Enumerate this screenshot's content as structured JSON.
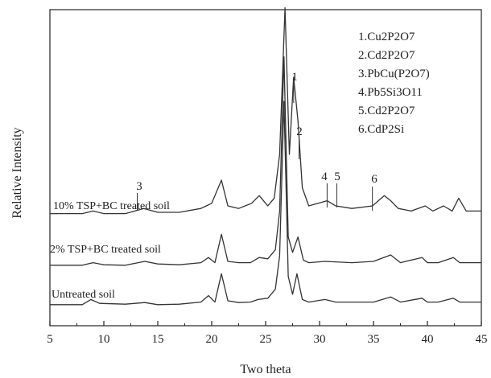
{
  "chart_data": {
    "type": "line",
    "xlabel": "Two theta",
    "ylabel": "Relative Intensity",
    "xlim": [
      5,
      45
    ],
    "xticks": [
      5,
      10,
      15,
      20,
      25,
      30,
      35,
      40,
      45
    ],
    "y_ticks_shown": false,
    "grid": false,
    "legend_position": "top-right",
    "phase_legend": [
      "1.Cu2P2O7",
      "2.Cd2P2O7",
      "3.PbCu(P2O7)",
      "4.Pb5Si3O11",
      "5.Cd2P2O7",
      "6.CdP2Si"
    ],
    "peak_markers": [
      {
        "label": "1",
        "x": 27.6
      },
      {
        "label": "2",
        "x": 28.1
      },
      {
        "label": "3",
        "x": 13.1
      },
      {
        "label": "4",
        "x": 30.7
      },
      {
        "label": "5",
        "x": 31.6
      },
      {
        "label": "6",
        "x": 34.9
      }
    ],
    "series": [
      {
        "name": "Untreated soil",
        "color": "#333333",
        "x": [
          5,
          8,
          8.8,
          9.6,
          12,
          13.8,
          15,
          17,
          19,
          19.7,
          20.3,
          20.9,
          21.5,
          22.5,
          23.6,
          24.3,
          25.2,
          25.9,
          26.3,
          26.7,
          27.1,
          27.5,
          27.9,
          28.4,
          29,
          30.5,
          31.5,
          33,
          35,
          36.6,
          37.5,
          39.5,
          40,
          41,
          42.4,
          43,
          45
        ],
        "y": [
          1,
          1,
          3,
          1.5,
          1.2,
          1.8,
          1,
          1.2,
          2,
          4.5,
          2,
          13,
          2.5,
          1.8,
          2,
          3,
          3.5,
          7,
          20,
          80,
          12,
          5,
          13,
          3,
          2,
          3,
          2,
          2,
          2,
          4,
          2,
          3.5,
          2,
          2,
          3.5,
          2,
          2
        ]
      },
      {
        "name": "2% TSP+BC treated soil",
        "color": "#333333",
        "x": [
          5,
          8,
          9,
          10,
          12,
          13.8,
          15,
          17,
          19,
          19.7,
          20.3,
          20.9,
          21.5,
          22.5,
          23.6,
          24.4,
          25.2,
          25.9,
          26.3,
          26.7,
          27.1,
          27.5,
          28,
          28.5,
          29,
          30.5,
          33,
          35,
          36.6,
          37.5,
          39.5,
          40,
          41,
          42.4,
          43,
          45
        ],
        "y": [
          1,
          1,
          2,
          1.2,
          1,
          2.5,
          1.5,
          1.2,
          2,
          4,
          2,
          13,
          2.5,
          2,
          2,
          4,
          3.5,
          7,
          22,
          82,
          12,
          6,
          12,
          3,
          2,
          2.5,
          2,
          2.5,
          5,
          2,
          4,
          2,
          2,
          4,
          2,
          2
        ]
      },
      {
        "name": "10% TSP+BC treated soil",
        "color": "#333333",
        "x": [
          5,
          8,
          9,
          10,
          12,
          13.7,
          15,
          17,
          19,
          20,
          20.9,
          21.5,
          22.5,
          23.7,
          24.4,
          25.2,
          25.8,
          26.3,
          26.8,
          27.2,
          27.6,
          28,
          28.4,
          29,
          30.7,
          31.5,
          33,
          34.9,
          36,
          36.6,
          37.3,
          38.5,
          39.8,
          40.5,
          41.5,
          42.3,
          42.9,
          43.6,
          45
        ],
        "y": [
          2,
          2,
          3,
          2,
          2,
          4,
          2.5,
          2.5,
          4,
          6,
          15,
          5,
          4,
          6,
          9,
          5,
          8,
          25,
          82,
          25,
          55,
          38,
          12,
          5,
          7,
          5,
          4,
          5,
          9,
          7,
          4,
          3,
          5,
          3,
          5,
          3,
          8,
          3,
          3
        ]
      }
    ]
  }
}
